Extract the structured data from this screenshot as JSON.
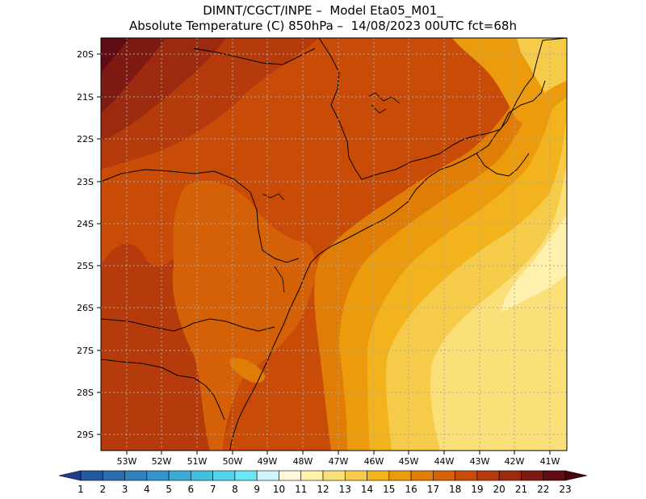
{
  "title_line1": "DIMNT/CGCT/INPE –  Model Eta05_M01_",
  "title_line2": "Absolute Temperature (C) 850hPa –  14/08/2023 00UTC fct=68h",
  "map": {
    "lat_labels": [
      "20S",
      "21S",
      "22S",
      "23S",
      "24S",
      "25S",
      "26S",
      "27S",
      "28S",
      "29S"
    ],
    "lon_labels": [
      "53W",
      "52W",
      "51W",
      "50W",
      "49W",
      "48W",
      "47W",
      "46W",
      "45W",
      "44W",
      "43W",
      "42W",
      "41W"
    ],
    "grid": "dotted"
  },
  "colorbar": {
    "labels": [
      "1",
      "2",
      "3",
      "4",
      "5",
      "6",
      "7",
      "8",
      "9",
      "10",
      "11",
      "12",
      "13",
      "14",
      "15",
      "16",
      "17",
      "18",
      "19",
      "20",
      "21",
      "22",
      "23"
    ],
    "colors": [
      "#1e3f8f",
      "#24579f",
      "#2a6cae",
      "#2f82bd",
      "#3496c8",
      "#3aabd4",
      "#45bfdf",
      "#55d2e9",
      "#6ae6f4",
      "#cdf3fb",
      "#fff6dc",
      "#fff0ad",
      "#fbdf78",
      "#f6cb4a",
      "#f2b31c",
      "#eb9b0c",
      "#e07d06",
      "#d46107",
      "#c84c08",
      "#b53a0c",
      "#9b2a0f",
      "#7d1b12",
      "#5f0c14",
      "#45050c"
    ]
  },
  "colors": {
    "coastline": "#000000",
    "gridline": "#a9a9a9"
  }
}
